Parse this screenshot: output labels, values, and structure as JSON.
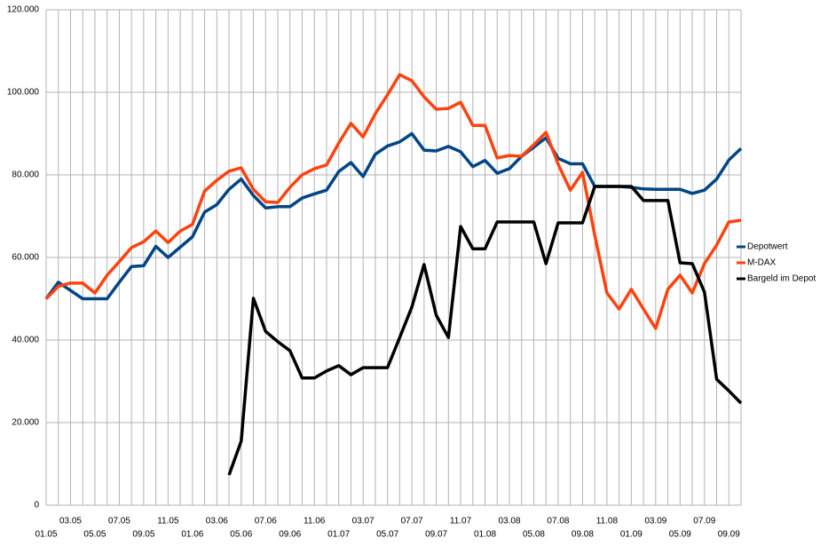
{
  "chart_data": {
    "type": "line",
    "categories": [
      "01.05",
      null,
      "03.05",
      null,
      "05.05",
      null,
      "07.05",
      null,
      "09.05",
      null,
      "11.05",
      null,
      "01.06",
      null,
      "03.06",
      null,
      "05.06",
      null,
      "07.06",
      null,
      "09.06",
      null,
      "11.06",
      null,
      "01.07",
      null,
      "03.07",
      null,
      "05.07",
      null,
      "07.07",
      null,
      "09.07",
      null,
      "11.07",
      null,
      "01.08",
      null,
      "03.08",
      null,
      "05.08",
      null,
      "07.08",
      null,
      "09.08",
      null,
      "11.08",
      null,
      "01.09",
      null,
      "03.09",
      null,
      "05.09",
      null,
      "07.09",
      null,
      "09.09",
      null
    ],
    "series": [
      {
        "name": "Depotwert",
        "color": "#004586",
        "values": [
          50000,
          54000,
          52000,
          50000,
          50000,
          50000,
          54000,
          57800,
          58000,
          62700,
          60000,
          62500,
          65000,
          71000,
          72800,
          76500,
          79000,
          75000,
          72000,
          72300,
          72300,
          74400,
          75400,
          76300,
          80800,
          83000,
          79600,
          85000,
          87000,
          88000,
          90000,
          86000,
          85800,
          86900,
          85600,
          82000,
          83500,
          80400,
          81500,
          84500,
          86700,
          89000,
          84000,
          82700,
          82700,
          77200,
          77200,
          77200,
          77000,
          76600,
          76500,
          76500,
          76500,
          75500,
          76300,
          79000,
          83600,
          86400
        ]
      },
      {
        "name": "M-DAX",
        "color": "#ff420e",
        "values": [
          50000,
          53000,
          53800,
          53800,
          51400,
          55700,
          59000,
          62400,
          63800,
          66400,
          63600,
          66400,
          68000,
          76100,
          78700,
          80900,
          81700,
          76500,
          73500,
          73300,
          77000,
          80000,
          81500,
          82400,
          87700,
          92500,
          89200,
          94800,
          99400,
          104300,
          102800,
          98900,
          95900,
          96100,
          97600,
          92000,
          92000,
          84100,
          84700,
          84500,
          87300,
          90300,
          82600,
          76300,
          80600,
          65400,
          51400,
          47500,
          52300,
          47500,
          42800,
          52300,
          55700,
          51400,
          58500,
          63000,
          68600,
          69000
        ]
      },
      {
        "name": "Bargeld im Depot",
        "color": "#000000",
        "values": [
          null,
          null,
          null,
          null,
          null,
          null,
          null,
          null,
          null,
          null,
          null,
          null,
          null,
          null,
          null,
          7300,
          15500,
          50100,
          42100,
          39600,
          37400,
          30800,
          30800,
          32500,
          33800,
          31600,
          33300,
          33300,
          33300,
          40600,
          48000,
          58300,
          46000,
          40600,
          67500,
          62100,
          62100,
          68600,
          68600,
          68600,
          68600,
          58500,
          68400,
          68400,
          68400,
          77200,
          77200,
          77200,
          77200,
          73800,
          73800,
          73800,
          58700,
          58500,
          51600,
          30500,
          27700,
          24700
        ]
      }
    ],
    "ylim": [
      0,
      120000
    ],
    "yticks": [
      0,
      {
        "value": 20000,
        "label": "20.000"
      },
      {
        "value": 40000,
        "label": "40.000"
      },
      {
        "value": 60000,
        "label": "60.000"
      },
      {
        "value": 80000,
        "label": "80.000"
      },
      {
        "value": 100000,
        "label": "100.000"
      },
      {
        "value": 120000,
        "label": "120.000"
      }
    ],
    "grid": true,
    "legend": "right"
  }
}
